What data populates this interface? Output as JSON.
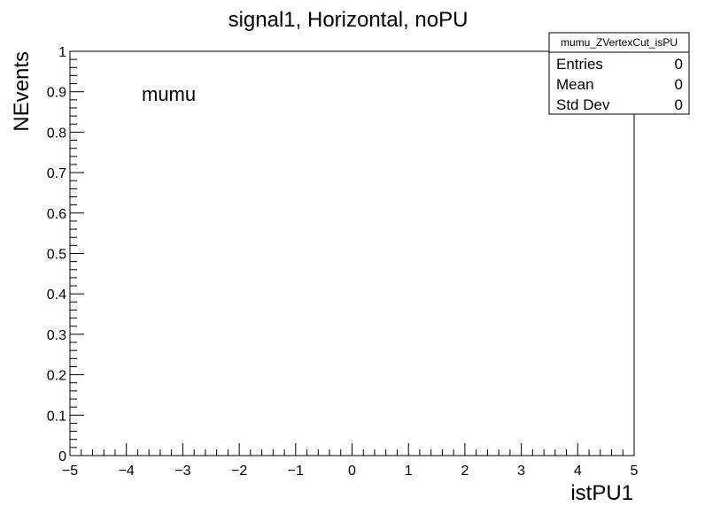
{
  "chart_data": {
    "type": "bar",
    "title": "signal1, Horizontal, noPU",
    "xlabel": "istPU1",
    "ylabel": "NEvents",
    "xlim": [
      -5,
      5
    ],
    "ylim": [
      0,
      1
    ],
    "x_ticks": [
      "−5",
      "−4",
      "−3",
      "−2",
      "−1",
      "0",
      "1",
      "2",
      "3",
      "4",
      "5"
    ],
    "y_ticks": [
      "0",
      "0.1",
      "0.2",
      "0.3",
      "0.4",
      "0.5",
      "0.6",
      "0.7",
      "0.8",
      "0.9",
      "1"
    ],
    "values": [],
    "annotation": "mumu",
    "grid": false,
    "stats_box": {
      "name": "mumu_ZVertexCut_isPU",
      "rows": [
        {
          "label": "Entries",
          "value": "0"
        },
        {
          "label": "Mean",
          "value": "0"
        },
        {
          "label": "Std Dev",
          "value": "0"
        }
      ],
      "placement": "top-right"
    }
  }
}
